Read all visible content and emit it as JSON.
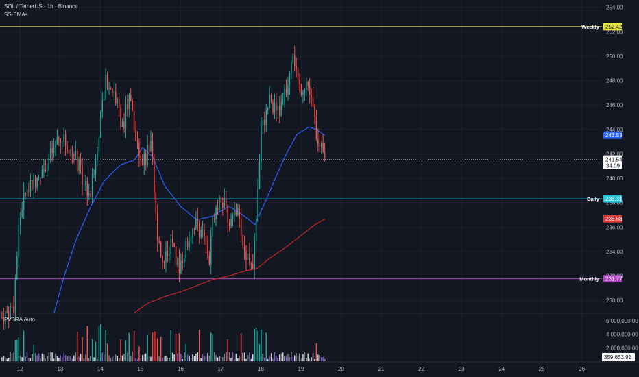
{
  "header": {
    "symbol_line": "SOL / TetherUS · 1h · Binance",
    "indicator1": "SS-EMAs",
    "indicator2": "PVSRA Auto"
  },
  "colors": {
    "background": "#131722",
    "up": "#26a69a",
    "down": "#ef5350",
    "ema_fast": "#2962ff",
    "ema_slow": "#c62828",
    "weekly": "#e6e63a",
    "daily": "#26c6da",
    "monthly": "#ab47bc",
    "price_badge": "#ffffff",
    "ema_fast_badge": "#2962ff",
    "ema_slow_badge": "#e53935"
  },
  "chart_data": {
    "type": "candlestick",
    "price_axis": {
      "ylim": [
        229.0,
        254.6
      ],
      "ticks": [
        "230.00",
        "232.00",
        "234.00",
        "236.00",
        "238.00",
        "240.00",
        "242.00",
        "244.00",
        "246.00",
        "248.00",
        "250.00",
        "252.00",
        "254.00"
      ]
    },
    "volume_axis": {
      "ylim": [
        0,
        7000000
      ],
      "ticks": [
        "2,000,000.00",
        "4,000,000.00",
        "6,000,000.00"
      ]
    },
    "x_axis": {
      "start_day": 11.5,
      "end_day": 26.5,
      "ticks": [
        "12",
        "13",
        "14",
        "15",
        "16",
        "17",
        "18",
        "19",
        "20",
        "21",
        "22",
        "23",
        "24",
        "25",
        "26"
      ]
    },
    "levels": [
      {
        "name": "Weekly",
        "value": 252.42,
        "label": "252.42",
        "color": "#e6e63a"
      },
      {
        "name": "Daily",
        "value": 238.31,
        "label": "238.31",
        "color": "#26c6da"
      },
      {
        "name": "Monthly",
        "value": 231.77,
        "label": "231.77",
        "color": "#ab47bc"
      }
    ],
    "badges": {
      "last_price": "241.54",
      "countdown": "34:09",
      "ema_fast": "243.53",
      "ema_slow": "236.68",
      "volume": "359,653.91"
    },
    "close_anchors": [
      [
        11.55,
        228.6
      ],
      [
        11.85,
        229.6
      ],
      [
        11.95,
        235.5
      ],
      [
        12.05,
        237.8
      ],
      [
        12.2,
        239.0
      ],
      [
        12.45,
        240.2
      ],
      [
        12.75,
        241.8
      ],
      [
        13.0,
        243.2
      ],
      [
        13.3,
        242.5
      ],
      [
        13.55,
        240.0
      ],
      [
        13.75,
        238.6
      ],
      [
        13.95,
        243.5
      ],
      [
        14.15,
        248.2
      ],
      [
        14.35,
        247.0
      ],
      [
        14.55,
        244.3
      ],
      [
        14.75,
        246.8
      ],
      [
        14.9,
        242.8
      ],
      [
        15.1,
        241.3
      ],
      [
        15.25,
        242.8
      ],
      [
        15.4,
        236.0
      ],
      [
        15.55,
        233.4
      ],
      [
        15.75,
        234.6
      ],
      [
        15.95,
        232.6
      ],
      [
        16.15,
        234.6
      ],
      [
        16.35,
        236.4
      ],
      [
        16.55,
        235.5
      ],
      [
        16.7,
        232.8
      ],
      [
        16.85,
        237.6
      ],
      [
        17.0,
        238.6
      ],
      [
        17.2,
        236.5
      ],
      [
        17.4,
        237.4
      ],
      [
        17.6,
        233.8
      ],
      [
        17.8,
        233.3
      ],
      [
        17.9,
        237.5
      ],
      [
        18.0,
        243.8
      ],
      [
        18.2,
        246.3
      ],
      [
        18.45,
        245.3
      ],
      [
        18.65,
        247.6
      ],
      [
        18.8,
        250.6
      ],
      [
        18.95,
        247.3
      ],
      [
        19.15,
        248.0
      ],
      [
        19.3,
        245.5
      ],
      [
        19.45,
        242.6
      ],
      [
        19.6,
        241.5
      ]
    ],
    "ema_fast_anchors": [
      [
        12.85,
        229.0
      ],
      [
        13.1,
        232.0
      ],
      [
        13.4,
        235.0
      ],
      [
        13.75,
        237.6
      ],
      [
        14.1,
        239.8
      ],
      [
        14.5,
        241.1
      ],
      [
        14.85,
        241.5
      ],
      [
        15.05,
        242.5
      ],
      [
        15.3,
        241.8
      ],
      [
        15.6,
        239.4
      ],
      [
        16.0,
        237.7
      ],
      [
        16.4,
        236.6
      ],
      [
        16.8,
        236.9
      ],
      [
        17.2,
        237.7
      ],
      [
        17.55,
        237.0
      ],
      [
        17.85,
        236.2
      ],
      [
        18.1,
        238.0
      ],
      [
        18.4,
        240.3
      ],
      [
        18.65,
        242.1
      ],
      [
        18.9,
        243.6
      ],
      [
        19.2,
        244.2
      ],
      [
        19.38,
        244.0
      ],
      [
        19.6,
        243.5
      ]
    ],
    "ema_slow_anchors": [
      [
        14.85,
        229.0
      ],
      [
        15.2,
        229.8
      ],
      [
        15.6,
        230.3
      ],
      [
        16.0,
        230.7
      ],
      [
        16.4,
        231.2
      ],
      [
        16.8,
        231.7
      ],
      [
        17.2,
        232.0
      ],
      [
        17.6,
        232.4
      ],
      [
        17.9,
        232.6
      ],
      [
        18.2,
        233.4
      ],
      [
        18.6,
        234.3
      ],
      [
        19.0,
        235.3
      ],
      [
        19.3,
        236.1
      ],
      [
        19.6,
        236.68
      ]
    ]
  }
}
